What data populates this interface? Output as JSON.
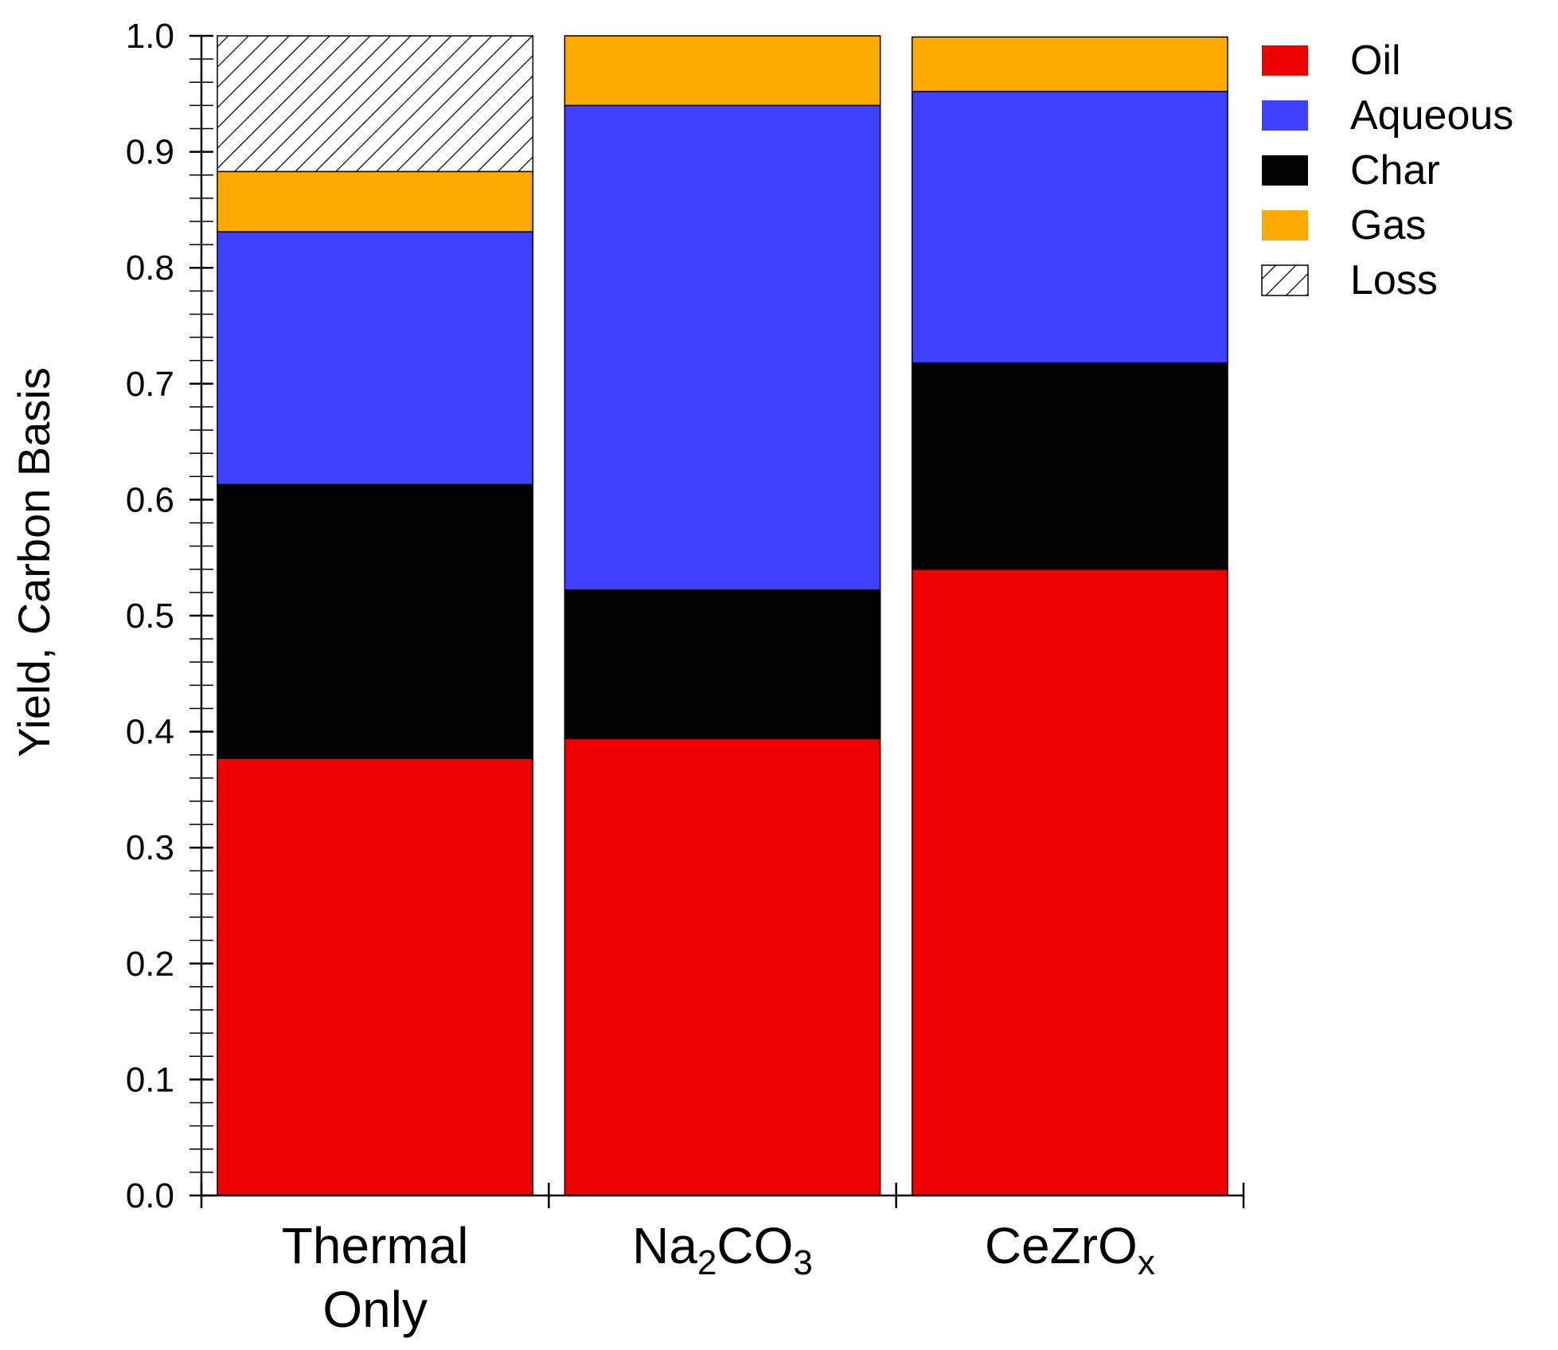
{
  "chart_data": {
    "type": "bar",
    "stacked": true,
    "title": "",
    "xlabel": "",
    "ylabel": "Yield, Carbon Basis",
    "ylim": [
      0,
      1.0
    ],
    "yticks": [
      "0.0",
      "0.1",
      "0.2",
      "0.3",
      "0.4",
      "0.5",
      "0.6",
      "0.7",
      "0.8",
      "0.9",
      "1.0"
    ],
    "categories": [
      {
        "lines": [
          {
            "parts": [
              {
                "text": "Thermal",
                "sub": false
              }
            ]
          },
          {
            "parts": [
              {
                "text": "Only",
                "sub": false
              }
            ]
          }
        ]
      },
      {
        "lines": [
          {
            "parts": [
              {
                "text": "Na",
                "sub": false
              },
              {
                "text": "2",
                "sub": true
              },
              {
                "text": "CO",
                "sub": false
              },
              {
                "text": "3",
                "sub": true
              }
            ]
          }
        ]
      },
      {
        "lines": [
          {
            "parts": [
              {
                "text": "CeZrO",
                "sub": false
              },
              {
                "text": "x",
                "sub": true
              }
            ]
          }
        ]
      }
    ],
    "series": [
      {
        "name": "Oil",
        "color": "#ee0000",
        "values": [
          0.377,
          0.394,
          0.54
        ]
      },
      {
        "name": "Char",
        "color": "#000000",
        "values": [
          0.236,
          0.128,
          0.178
        ]
      },
      {
        "name": "Aqueous",
        "color": "#4040ff",
        "values": [
          0.218,
          0.418,
          0.234
        ]
      },
      {
        "name": "Gas",
        "color": "#ffaa00",
        "values": [
          0.052,
          0.06,
          0.047
        ]
      },
      {
        "name": "Loss",
        "color": "hatch",
        "values": [
          0.117,
          0.0,
          0.0
        ]
      }
    ],
    "legend": {
      "position": "top-right",
      "order": [
        "Oil",
        "Aqueous",
        "Char",
        "Gas",
        "Loss"
      ]
    }
  }
}
